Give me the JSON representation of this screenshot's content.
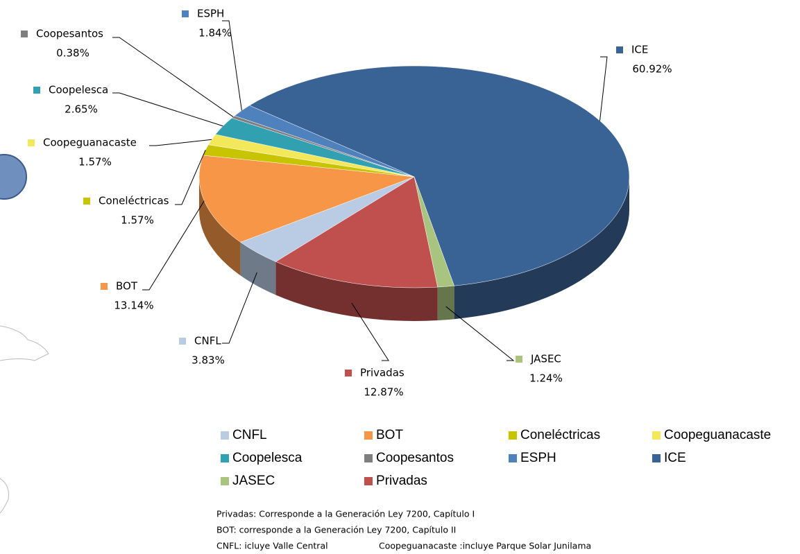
{
  "chart_data": {
    "type": "pie",
    "categories": [
      "ICE",
      "JASEC",
      "Privadas",
      "CNFL",
      "BOT",
      "Coneléctricas",
      "Coopeguanacaste",
      "Coopelesca",
      "Coopesantos",
      "ESPH"
    ],
    "values": [
      60.92,
      1.24,
      12.87,
      3.83,
      13.14,
      1.57,
      1.57,
      2.65,
      0.38,
      1.84
    ],
    "value_labels": [
      "60.92%",
      "1.24%",
      "12.87%",
      "3.83%",
      "13.14%",
      "1.57%",
      "1.57%",
      "2.65%",
      "0.38%",
      "1.84%"
    ],
    "colors": [
      "#3a6395",
      "#a9c47f",
      "#c0504d",
      "#b9cce4",
      "#f79646",
      "#c8c400",
      "#f2e85a",
      "#31a0b0",
      "#7f7f7f",
      "#4f81bd"
    ],
    "legend": [
      "CNFL",
      "BOT",
      "Coneléctricas",
      "Coopeguanacaste",
      "Coopelesca",
      "Coopesantos",
      "ESPH",
      "ICE",
      "JASEC",
      "Privadas"
    ],
    "notes": [
      "Privadas:  Corresponde a la Generación Ley 7200, Capítulo I",
      "BOT: corresponde a la Generación Ley 7200, Capítulo II",
      "CNFL: icluye Valle Central",
      "Coopeguanacaste :incluye Parque Solar Junilama"
    ]
  }
}
